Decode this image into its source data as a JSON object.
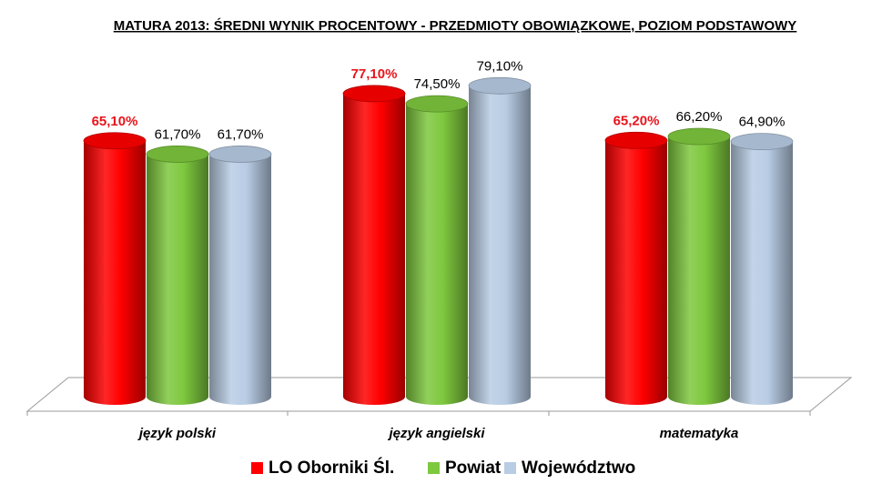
{
  "chart_data": {
    "type": "bar",
    "title": "MATURA 2013: ŚREDNI WYNIK PROCENTOWY - PRZEDMIOTY OBOWIĄZKOWE, POZIOM PODSTAWOWY",
    "categories": [
      "język polski",
      "język angielski",
      "matematyka"
    ],
    "series": [
      {
        "name": "LO Oborniki Śl.",
        "values": [
          65.1,
          77.1,
          65.2
        ],
        "labels": [
          "65,10%",
          "77,10%",
          "65,20%"
        ],
        "color": "#ff0000",
        "highlight": true
      },
      {
        "name": "Powiat",
        "values": [
          61.7,
          74.5,
          66.2
        ],
        "labels": [
          "61,70%",
          "74,50%",
          "66,20%"
        ],
        "color": "#7ec83e",
        "highlight": false
      },
      {
        "name": "Województwo",
        "values": [
          61.7,
          79.1,
          64.9
        ],
        "labels": [
          "61,70%",
          "79,10%",
          "64,90%"
        ],
        "color": "#b8cce4",
        "highlight": false
      }
    ],
    "style": "3d-cylinder",
    "grid": false,
    "legend_position": "bottom"
  }
}
